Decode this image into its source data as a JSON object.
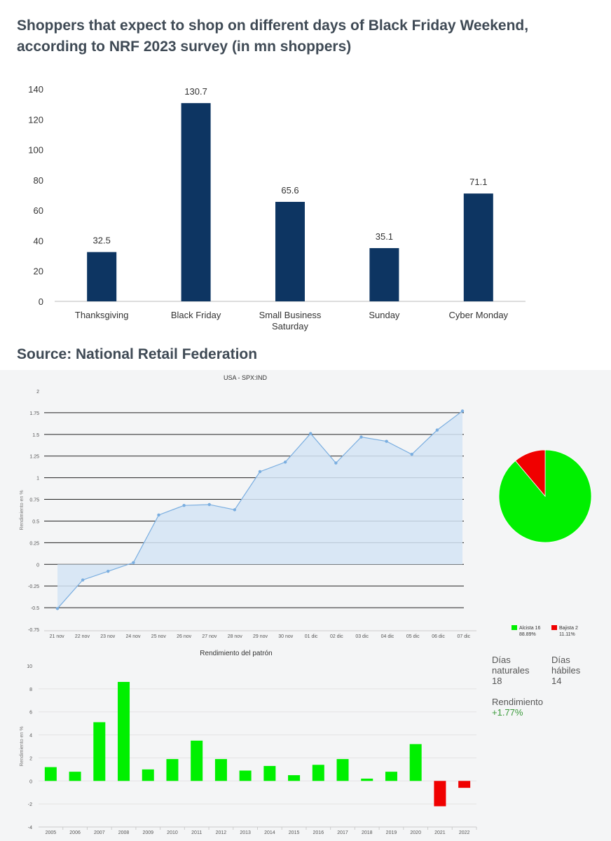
{
  "chart_data": [
    {
      "type": "bar",
      "title": "Shoppers that expect to shop on different days of Black Friday Weekend, according to NRF 2023 survey (in mn shoppers)",
      "source": "Source: National Retail Federation",
      "categories": [
        "Thanksgiving",
        "Black Friday",
        "Small Business Saturday",
        "Sunday",
        "Cyber Monday"
      ],
      "category_lines": [
        [
          "Thanksgiving"
        ],
        [
          "Black Friday"
        ],
        [
          "Small Business",
          "Saturday"
        ],
        [
          "Sunday"
        ],
        [
          "Cyber Monday"
        ]
      ],
      "values": [
        32.5,
        130.7,
        65.6,
        35.1,
        71.1
      ],
      "value_labels": [
        "32.5",
        "130.7",
        "65.6",
        "35.1",
        "71.1"
      ],
      "ylim": [
        0,
        140
      ],
      "yticks": [
        0,
        20,
        40,
        60,
        80,
        100,
        120,
        140
      ],
      "color": "#0d3562"
    },
    {
      "type": "area",
      "title": "USA - SPX:IND",
      "ylabel": "Rendimiento en %",
      "x": [
        "21 nov",
        "22 nov",
        "23 nov",
        "24 nov",
        "25 nov",
        "26 nov",
        "27 nov",
        "28 nov",
        "29 nov",
        "30 nov",
        "01 dic",
        "02 dic",
        "03 dic",
        "04 dic",
        "05 dic",
        "06 dic",
        "07 dic"
      ],
      "values": [
        -0.51,
        -0.18,
        -0.08,
        0.02,
        0.57,
        0.68,
        0.69,
        0.63,
        1.07,
        1.18,
        1.51,
        1.17,
        1.47,
        1.42,
        1.27,
        1.55,
        1.77
      ],
      "ylim": [
        -0.75,
        2
      ],
      "yticks": [
        -0.75,
        -0.5,
        -0.25,
        0,
        0.25,
        0.5,
        0.75,
        1,
        1.25,
        1.5,
        1.75,
        2
      ],
      "ytick_labels": [
        "-0.75",
        "-0.5",
        "-0.25",
        "0",
        "0.25",
        "0.5",
        "0.75",
        "1",
        "1.25",
        "1.5",
        "1.75",
        "2"
      ],
      "line_color": "#7aaee0",
      "fill_color": "#d3e4f5"
    },
    {
      "type": "pie",
      "slices": [
        {
          "label": "Alcista 16",
          "percent_label": "88.89%",
          "value": 88.89,
          "color": "#00f000"
        },
        {
          "label": "Bajista 2",
          "percent_label": "11.11%",
          "value": 11.11,
          "color": "#f00000"
        }
      ],
      "legend": "bottom"
    },
    {
      "type": "bar",
      "title": "Rendimiento del patrón",
      "ylabel": "Rendimiento en %",
      "categories": [
        "2005",
        "2006",
        "2007",
        "2008",
        "2009",
        "2010",
        "2011",
        "2012",
        "2013",
        "2014",
        "2015",
        "2016",
        "2017",
        "2018",
        "2019",
        "2020",
        "2021",
        "2022"
      ],
      "values": [
        1.2,
        0.8,
        5.1,
        8.6,
        1.0,
        1.9,
        3.5,
        1.9,
        0.9,
        1.3,
        0.5,
        1.4,
        1.9,
        0.2,
        0.8,
        3.2,
        -2.2,
        -0.6
      ],
      "ylim": [
        -4,
        10
      ],
      "yticks": [
        -4,
        -2,
        0,
        2,
        4,
        6,
        8,
        10
      ],
      "positive_color": "#00f000",
      "negative_color": "#f00000"
    }
  ],
  "stats": {
    "dias_naturales_label_1": "Días",
    "dias_naturales_label_2": "naturales",
    "dias_naturales_value": "18",
    "dias_habiles_label_1": "Días",
    "dias_habiles_label_2": "hábiles",
    "dias_habiles_value": "14",
    "rendimiento_label": "Rendimiento",
    "rendimiento_value": "+1.77%"
  }
}
